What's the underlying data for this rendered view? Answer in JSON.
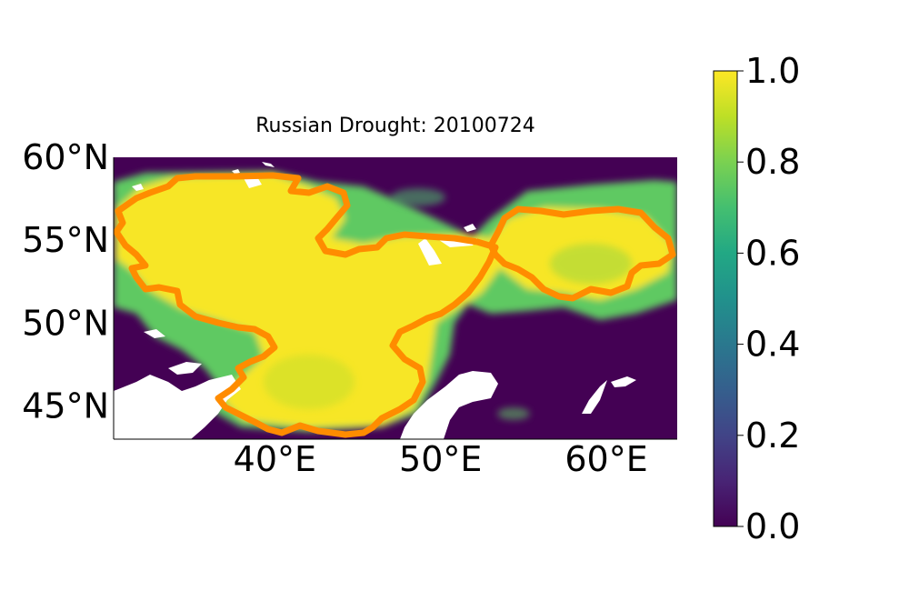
{
  "title": "Russian Drought: 20100724",
  "map": {
    "lon_range": [
      30,
      64
    ],
    "lat_range": [
      43,
      60
    ],
    "lon_ticks": [
      {
        "value": 40,
        "label": "40°E"
      },
      {
        "value": 50,
        "label": "50°E"
      },
      {
        "value": 60,
        "label": "60°E"
      }
    ],
    "lat_ticks": [
      {
        "value": 60,
        "label": "60°N"
      },
      {
        "value": 55,
        "label": "55°N"
      },
      {
        "value": 50,
        "label": "50°N"
      },
      {
        "value": 45,
        "label": "45°N"
      }
    ],
    "field_description_colors": {
      "low": "#440154",
      "high": "#fde725"
    },
    "boundary_color": "#ff8c00",
    "water_color": "#ffffff"
  },
  "colorbar": {
    "range": [
      0.0,
      1.0
    ],
    "ticks": [
      {
        "value": 0.0,
        "label": "0.0"
      },
      {
        "value": 0.2,
        "label": "0.2"
      },
      {
        "value": 0.4,
        "label": "0.4"
      },
      {
        "value": 0.6,
        "label": "0.6"
      },
      {
        "value": 0.8,
        "label": "0.8"
      },
      {
        "value": 1.0,
        "label": "1.0"
      }
    ],
    "colormap": "viridis"
  }
}
